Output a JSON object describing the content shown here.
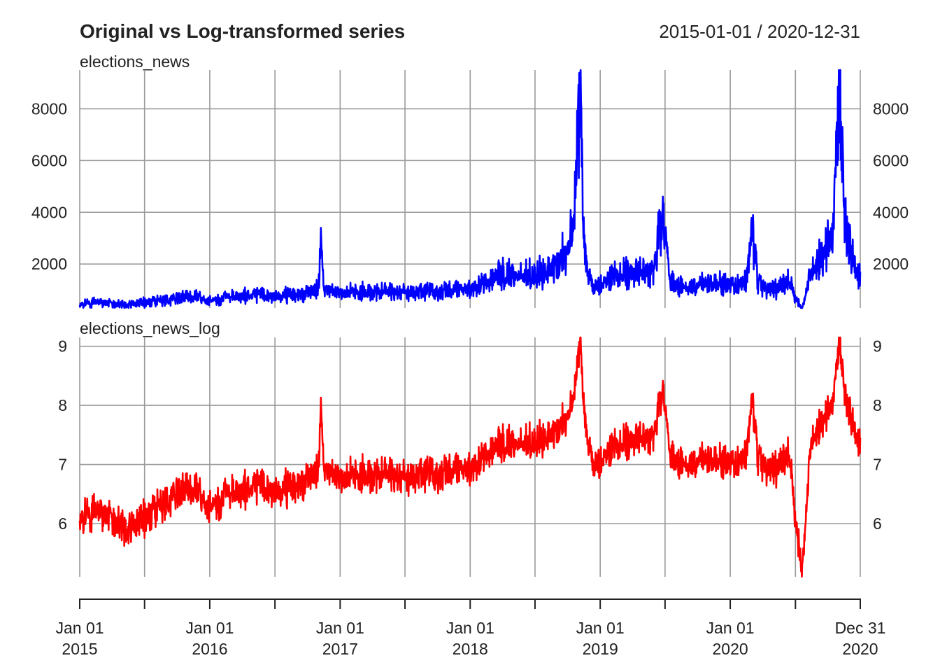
{
  "chart_data": [
    {
      "type": "line",
      "title": "Original vs Log-transformed series",
      "subtitle": "2015-01-01 / 2020-12-31",
      "panel_label": "elections_news",
      "xlim": [
        "2015-01-01",
        "2020-12-31"
      ],
      "ylim": [
        300,
        9500
      ],
      "yticks": [
        2000,
        4000,
        6000,
        8000
      ],
      "grid": true,
      "series": [
        {
          "name": "elections_news",
          "color": "#0000ff",
          "points": [
            [
              "2015-01-01",
              420
            ],
            [
              "2015-02-15",
              520
            ],
            [
              "2015-04-01",
              480
            ],
            [
              "2015-05-15",
              430
            ],
            [
              "2015-07-01",
              520
            ],
            [
              "2015-08-15",
              580
            ],
            [
              "2015-10-01",
              700
            ],
            [
              "2015-11-15",
              750
            ],
            [
              "2016-01-01",
              560
            ],
            [
              "2016-02-15",
              680
            ],
            [
              "2016-04-01",
              760
            ],
            [
              "2016-05-15",
              820
            ],
            [
              "2016-07-01",
              760
            ],
            [
              "2016-08-15",
              800
            ],
            [
              "2016-10-01",
              880
            ],
            [
              "2016-11-01",
              1100
            ],
            [
              "2016-11-08",
              3400
            ],
            [
              "2016-11-15",
              1200
            ],
            [
              "2016-12-15",
              900
            ],
            [
              "2017-01-01",
              820
            ],
            [
              "2017-02-15",
              950
            ],
            [
              "2017-04-01",
              900
            ],
            [
              "2017-05-15",
              1000
            ],
            [
              "2017-07-01",
              880
            ],
            [
              "2017-08-15",
              950
            ],
            [
              "2017-10-01",
              900
            ],
            [
              "2017-11-15",
              1050
            ],
            [
              "2018-01-01",
              1000
            ],
            [
              "2018-02-15",
              1350
            ],
            [
              "2018-04-01",
              1600
            ],
            [
              "2018-05-15",
              1550
            ],
            [
              "2018-07-01",
              1600
            ],
            [
              "2018-08-15",
              1800
            ],
            [
              "2018-09-30",
              2500
            ],
            [
              "2018-10-20",
              3800
            ],
            [
              "2018-11-06",
              9400
            ],
            [
              "2018-11-15",
              3000
            ],
            [
              "2018-12-01",
              1500
            ],
            [
              "2018-12-20",
              1000
            ],
            [
              "2019-01-15",
              1400
            ],
            [
              "2019-03-01",
              1600
            ],
            [
              "2019-04-15",
              1700
            ],
            [
              "2019-06-01",
              1800
            ],
            [
              "2019-06-27",
              4200
            ],
            [
              "2019-07-15",
              1400
            ],
            [
              "2019-09-01",
              1100
            ],
            [
              "2019-10-15",
              1250
            ],
            [
              "2019-12-01",
              1300
            ],
            [
              "2020-01-15",
              1150
            ],
            [
              "2020-02-15",
              1400
            ],
            [
              "2020-03-03",
              3300
            ],
            [
              "2020-03-20",
              1200
            ],
            [
              "2020-05-01",
              1000
            ],
            [
              "2020-06-15",
              1300
            ],
            [
              "2020-07-20",
              200
            ],
            [
              "2020-08-15",
              1700
            ],
            [
              "2020-09-15",
              2400
            ],
            [
              "2020-10-15",
              3200
            ],
            [
              "2020-11-03",
              9000
            ],
            [
              "2020-11-15",
              4200
            ],
            [
              "2020-12-01",
              2600
            ],
            [
              "2020-12-20",
              1800
            ],
            [
              "2020-12-31",
              1700
            ]
          ]
        }
      ]
    },
    {
      "type": "line",
      "panel_label": "elections_news_log",
      "xlim": [
        "2015-01-01",
        "2020-12-31"
      ],
      "ylim": [
        5.1,
        9.15
      ],
      "yticks": [
        6,
        7,
        8,
        9
      ],
      "xticks_major": [
        [
          "Jan 01",
          "2015"
        ],
        [
          "Jan 01",
          "2016"
        ],
        [
          "Jan 01",
          "2017"
        ],
        [
          "Jan 01",
          "2018"
        ],
        [
          "Jan 01",
          "2019"
        ],
        [
          "Jan 01",
          "2020"
        ],
        [
          "Dec 31",
          "2020"
        ]
      ],
      "grid": true,
      "series": [
        {
          "name": "elections_news_log",
          "color": "#ff0000",
          "points": [
            [
              "2015-01-01",
              6.05
            ],
            [
              "2015-02-15",
              6.2
            ],
            [
              "2015-04-01",
              6.1
            ],
            [
              "2015-05-15",
              5.9
            ],
            [
              "2015-07-01",
              6.1
            ],
            [
              "2015-08-15",
              6.3
            ],
            [
              "2015-10-01",
              6.55
            ],
            [
              "2015-11-15",
              6.6
            ],
            [
              "2016-01-01",
              6.25
            ],
            [
              "2016-02-15",
              6.45
            ],
            [
              "2016-04-01",
              6.55
            ],
            [
              "2016-05-15",
              6.65
            ],
            [
              "2016-07-01",
              6.55
            ],
            [
              "2016-08-15",
              6.6
            ],
            [
              "2016-10-01",
              6.75
            ],
            [
              "2016-11-01",
              6.95
            ],
            [
              "2016-11-08",
              8.13
            ],
            [
              "2016-11-15",
              7.05
            ],
            [
              "2016-12-15",
              6.8
            ],
            [
              "2017-01-01",
              6.7
            ],
            [
              "2017-02-15",
              6.85
            ],
            [
              "2017-04-01",
              6.8
            ],
            [
              "2017-05-15",
              6.9
            ],
            [
              "2017-07-01",
              6.75
            ],
            [
              "2017-08-15",
              6.85
            ],
            [
              "2017-10-01",
              6.8
            ],
            [
              "2017-11-15",
              6.95
            ],
            [
              "2018-01-01",
              6.9
            ],
            [
              "2018-02-15",
              7.2
            ],
            [
              "2018-04-01",
              7.35
            ],
            [
              "2018-05-15",
              7.35
            ],
            [
              "2018-07-01",
              7.4
            ],
            [
              "2018-08-15",
              7.5
            ],
            [
              "2018-09-30",
              7.8
            ],
            [
              "2018-10-20",
              8.2
            ],
            [
              "2018-11-06",
              9.15
            ],
            [
              "2018-11-15",
              8.0
            ],
            [
              "2018-12-01",
              7.3
            ],
            [
              "2018-12-20",
              6.9
            ],
            [
              "2019-01-15",
              7.2
            ],
            [
              "2019-03-01",
              7.35
            ],
            [
              "2019-04-15",
              7.45
            ],
            [
              "2019-06-01",
              7.5
            ],
            [
              "2019-06-27",
              8.35
            ],
            [
              "2019-07-15",
              7.2
            ],
            [
              "2019-09-01",
              7.0
            ],
            [
              "2019-10-15",
              7.1
            ],
            [
              "2019-12-01",
              7.1
            ],
            [
              "2020-01-15",
              7.0
            ],
            [
              "2020-02-15",
              7.2
            ],
            [
              "2020-03-03",
              8.1
            ],
            [
              "2020-03-20",
              7.05
            ],
            [
              "2020-05-01",
              6.9
            ],
            [
              "2020-06-15",
              7.15
            ],
            [
              "2020-07-20",
              5.1
            ],
            [
              "2020-08-15",
              7.4
            ],
            [
              "2020-09-15",
              7.75
            ],
            [
              "2020-10-15",
              8.05
            ],
            [
              "2020-11-03",
              9.1
            ],
            [
              "2020-11-15",
              8.3
            ],
            [
              "2020-12-01",
              7.85
            ],
            [
              "2020-12-20",
              7.5
            ],
            [
              "2020-12-31",
              7.45
            ]
          ]
        }
      ]
    }
  ]
}
